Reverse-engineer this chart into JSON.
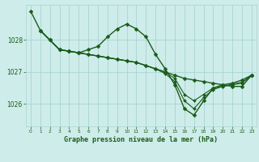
{
  "title": "Graphe pression niveau de la mer (hPa)",
  "xlabel_ticks": [
    0,
    1,
    2,
    3,
    4,
    5,
    6,
    7,
    8,
    9,
    10,
    11,
    12,
    13,
    14,
    15,
    16,
    17,
    18,
    19,
    20,
    21,
    22,
    23
  ],
  "yticks": [
    1026,
    1027,
    1028
  ],
  "ylim": [
    1025.3,
    1029.1
  ],
  "xlim": [
    -0.5,
    23.5
  ],
  "bg_color": "#ceecea",
  "grid_color": "#a8d5d0",
  "line_color": "#1a5c1a",
  "series": [
    {
      "x": [
        0,
        1,
        2,
        3,
        4,
        5,
        6,
        7,
        8,
        9,
        10,
        11,
        12,
        13,
        14,
        15,
        16,
        17,
        18,
        19,
        20,
        21,
        22,
        23
      ],
      "y": [
        1028.9,
        1028.3,
        1028.0,
        1027.7,
        1027.65,
        1027.6,
        1027.55,
        1027.5,
        1027.45,
        1027.4,
        1027.35,
        1027.3,
        1027.2,
        1027.1,
        1027.0,
        1026.9,
        1026.8,
        1026.75,
        1026.7,
        1026.65,
        1026.6,
        1026.55,
        1026.55,
        1026.9
      ],
      "lw": 1.0,
      "ms": 2.5
    },
    {
      "x": [
        1,
        2,
        3,
        4,
        5,
        6,
        7,
        8,
        9,
        10,
        11,
        12,
        13,
        14,
        15,
        16,
        17,
        18,
        19,
        20,
        21,
        22,
        23
      ],
      "y": [
        1028.3,
        1028.0,
        1027.7,
        1027.65,
        1027.6,
        1027.7,
        1027.8,
        1028.1,
        1028.35,
        1028.5,
        1028.35,
        1028.1,
        1027.55,
        1027.1,
        1026.6,
        1025.85,
        1025.65,
        1026.1,
        1026.5,
        1026.6,
        1026.65,
        1026.75,
        1026.9
      ],
      "lw": 1.0,
      "ms": 2.5
    },
    {
      "x": [
        1,
        2,
        3,
        4,
        5,
        6,
        7,
        8,
        9,
        10,
        11,
        12,
        13,
        14,
        15,
        16,
        17,
        18,
        19,
        20,
        21,
        22,
        23
      ],
      "y": [
        1028.3,
        1028.0,
        1027.7,
        1027.65,
        1027.6,
        1027.55,
        1027.5,
        1027.45,
        1027.4,
        1027.35,
        1027.3,
        1027.2,
        1027.1,
        1027.0,
        1026.8,
        1026.3,
        1026.1,
        1026.3,
        1026.5,
        1026.55,
        1026.6,
        1026.65,
        1026.9
      ],
      "lw": 0.8,
      "ms": 2.0
    },
    {
      "x": [
        1,
        2,
        3,
        4,
        5,
        6,
        7,
        8,
        9,
        10,
        11,
        12,
        13,
        14,
        15,
        16,
        17,
        18,
        19,
        20,
        21,
        22,
        23
      ],
      "y": [
        1028.3,
        1028.0,
        1027.7,
        1027.65,
        1027.6,
        1027.55,
        1027.5,
        1027.45,
        1027.4,
        1027.35,
        1027.3,
        1027.2,
        1027.1,
        1026.95,
        1026.7,
        1026.1,
        1025.85,
        1026.2,
        1026.45,
        1026.55,
        1026.62,
        1026.68,
        1026.9
      ],
      "lw": 0.8,
      "ms": 2.0
    }
  ]
}
